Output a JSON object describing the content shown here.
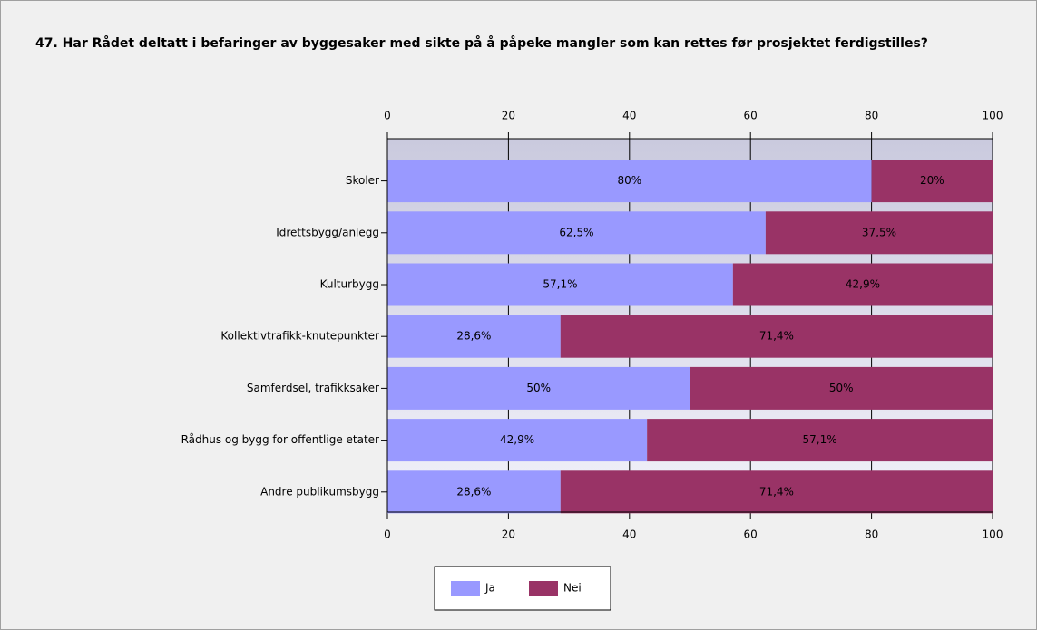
{
  "chart_data": {
    "type": "stacked-bar-horizontal",
    "title": "47. Har Rådet deltatt i befaringer av byggesaker med sikte på å påpeke mangler som kan rettes før prosjektet ferdigstilles?",
    "categories": [
      "Skoler",
      "Idrettsbygg/anlegg",
      "Kulturbygg",
      "Kollektivtrafikk-knutepunkter",
      "Samferdsel, trafikksaker",
      "Rådhus og bygg for offentlige etater",
      "Andre publikumsbygg"
    ],
    "series": [
      {
        "name": "Ja",
        "color": "#9999ff",
        "values": [
          80,
          62.5,
          57.1,
          28.6,
          50,
          42.9,
          28.6
        ],
        "value_labels": [
          "80%",
          "62,5%",
          "57,1%",
          "28,6%",
          "50%",
          "42,9%",
          "28,6%"
        ]
      },
      {
        "name": "Nei",
        "color": "#993366",
        "values": [
          20,
          37.5,
          42.9,
          71.4,
          50,
          57.1,
          71.4
        ],
        "value_labels": [
          "20%",
          "37,5%",
          "42,9%",
          "71,4%",
          "50%",
          "57,1%",
          "71,4%"
        ]
      }
    ],
    "xlim": [
      0,
      100
    ],
    "xticks": [
      0,
      20,
      40,
      60,
      80,
      100
    ],
    "grid": true,
    "legend": "bottom"
  }
}
